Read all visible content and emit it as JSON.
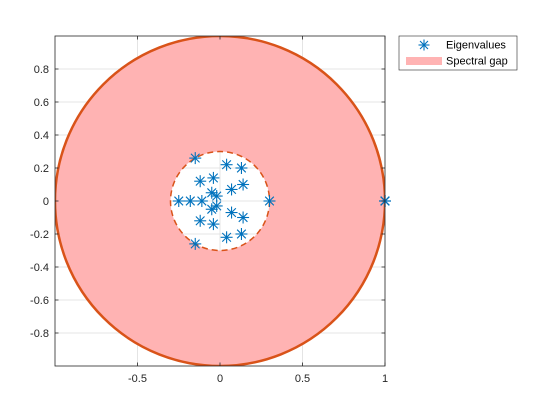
{
  "chart_data": {
    "type": "scatter",
    "title": "",
    "xlabel": "",
    "ylabel": "",
    "xlim": [
      -1,
      1
    ],
    "ylim": [
      -1,
      1
    ],
    "grid": true,
    "legend_position": "outside-top-right",
    "x_ticks": [
      -0.5,
      0,
      0.5,
      1
    ],
    "x_tick_labels": [
      "-0.5",
      "0",
      "0.5",
      "1"
    ],
    "y_ticks": [
      0.8,
      0.6,
      0.4,
      0.2,
      0,
      -0.2,
      -0.4,
      -0.6,
      -0.8
    ],
    "y_tick_labels": [
      "0.8",
      "0.6",
      "0.4",
      "0.2",
      "0",
      "-0.2",
      "-0.4",
      "-0.6",
      "-0.8"
    ],
    "legend": [
      {
        "label": "Eigenvalues",
        "symbol": "asterisk",
        "color": "#0072BD"
      },
      {
        "label": "Spectral gap",
        "symbol": "patch",
        "color": "#FFB3B3"
      }
    ],
    "spectral_gap": {
      "outer_radius": 1,
      "inner_radius": 0.3,
      "fill_color": "#FFB3B3",
      "edge_color": "#D95319"
    },
    "series": [
      {
        "name": "Eigenvalues",
        "color": "#0072BD",
        "marker": "asterisk",
        "points": [
          [
            1.0,
            0.0
          ],
          [
            1.0,
            0.0
          ],
          [
            1.0,
            0.0
          ],
          [
            -0.15,
            0.26
          ],
          [
            -0.15,
            -0.26
          ],
          [
            0.04,
            0.22
          ],
          [
            0.04,
            -0.22
          ],
          [
            0.13,
            0.2
          ],
          [
            0.13,
            -0.2
          ],
          [
            0.14,
            0.1
          ],
          [
            0.14,
            -0.1
          ],
          [
            0.07,
            0.07
          ],
          [
            0.07,
            -0.07
          ],
          [
            -0.12,
            0.12
          ],
          [
            -0.12,
            -0.12
          ],
          [
            -0.04,
            0.14
          ],
          [
            -0.04,
            -0.14
          ],
          [
            -0.25,
            0.0
          ],
          [
            -0.18,
            0.0
          ],
          [
            -0.11,
            0.0
          ],
          [
            -0.05,
            0.05
          ],
          [
            -0.05,
            -0.05
          ],
          [
            -0.02,
            0.03
          ],
          [
            -0.02,
            -0.03
          ],
          [
            0.3,
            0.0
          ]
        ]
      }
    ]
  }
}
